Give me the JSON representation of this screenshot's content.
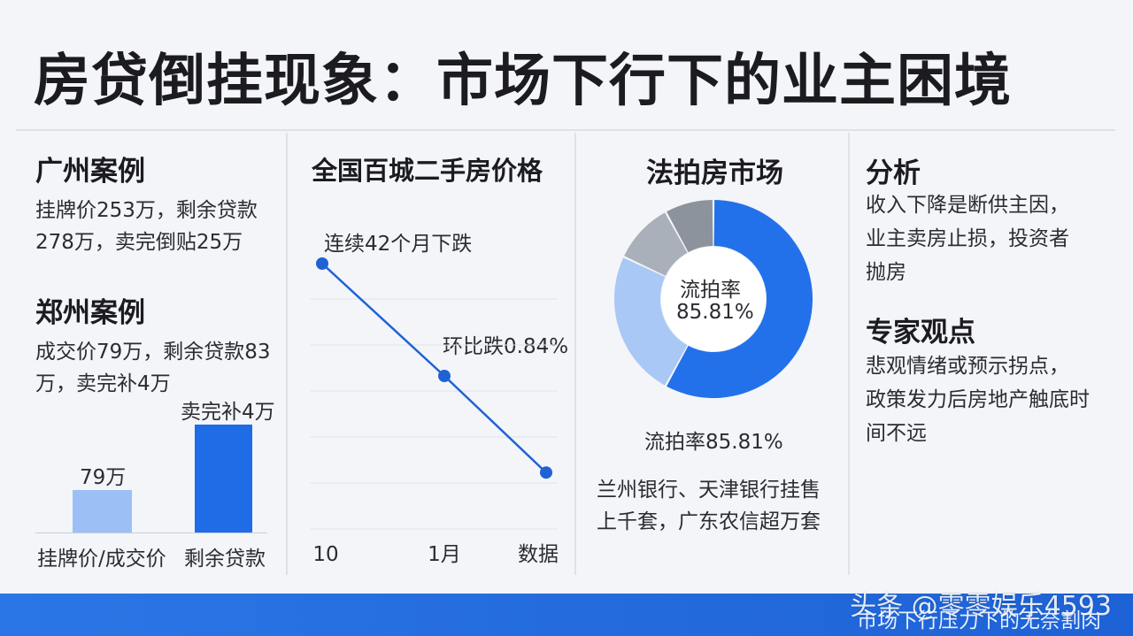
{
  "title": "房贷倒挂现象：市场下行下的业主困境",
  "guangzhou": {
    "heading": "广州案例",
    "text_line1": "挂牌价253万，剩余贷款",
    "text_line2": "278万，卖完倒贴25万"
  },
  "zhengzhou": {
    "heading": "郑州案例",
    "text_line1": "成交价79万，剩余贷款83",
    "text_line2": "万，卖完补4万"
  },
  "price_panel": {
    "heading": "全国百城二手房价格",
    "annotation_top": "连续42个月下跌",
    "annotation_mid": "环比跌0.84%"
  },
  "auction": {
    "heading": "法拍房市场",
    "donut_center_line1": "流拍率",
    "donut_center_line2": "85.81%",
    "rate_caption": "流拍率85.81%",
    "note_line1": "兰州银行、天津银行挂售",
    "note_line2": "上千套，广东农信超万套"
  },
  "analysis": {
    "heading": "分析",
    "line1": "收入下降是断供主因，",
    "line2": "业主卖房止损，投资者",
    "line3": "抛房"
  },
  "expert": {
    "heading": "专家观点",
    "line1": "悲观情绪或预示拐点，",
    "line2": "政策发力后房地产触底时",
    "line3": "间不远"
  },
  "footer": {
    "caption": "市场下行压力下的无奈割肉",
    "watermark": "头条 @零零娱乐4593"
  },
  "colors": {
    "bar_light": "#9cc0f6",
    "bar_dark": "#1f6ce6",
    "line": "#1f62d4",
    "donut_main": "#2371ea",
    "donut_light": "#a9c8f6",
    "donut_gray1": "#a9b0ba",
    "donut_gray2": "#8c939d"
  },
  "chart_data": [
    {
      "type": "bar",
      "categories": [
        "挂牌价/成交价",
        "剩余贷款"
      ],
      "values": [
        79,
        83
      ],
      "data_labels": [
        "79万",
        "卖完补4万"
      ],
      "unit": "万"
    },
    {
      "type": "line",
      "x": [
        "10",
        "1月",
        "数据"
      ],
      "values": [
        100,
        50,
        7
      ],
      "unit": "relative index (no value axis shown)"
    },
    {
      "type": "pie",
      "donut": true,
      "values": [
        58,
        24,
        10,
        8
      ],
      "colors": [
        "#2371ea",
        "#a9c8f6",
        "#a9b0ba",
        "#8c939d"
      ],
      "unit": "approximate share of ring"
    }
  ]
}
